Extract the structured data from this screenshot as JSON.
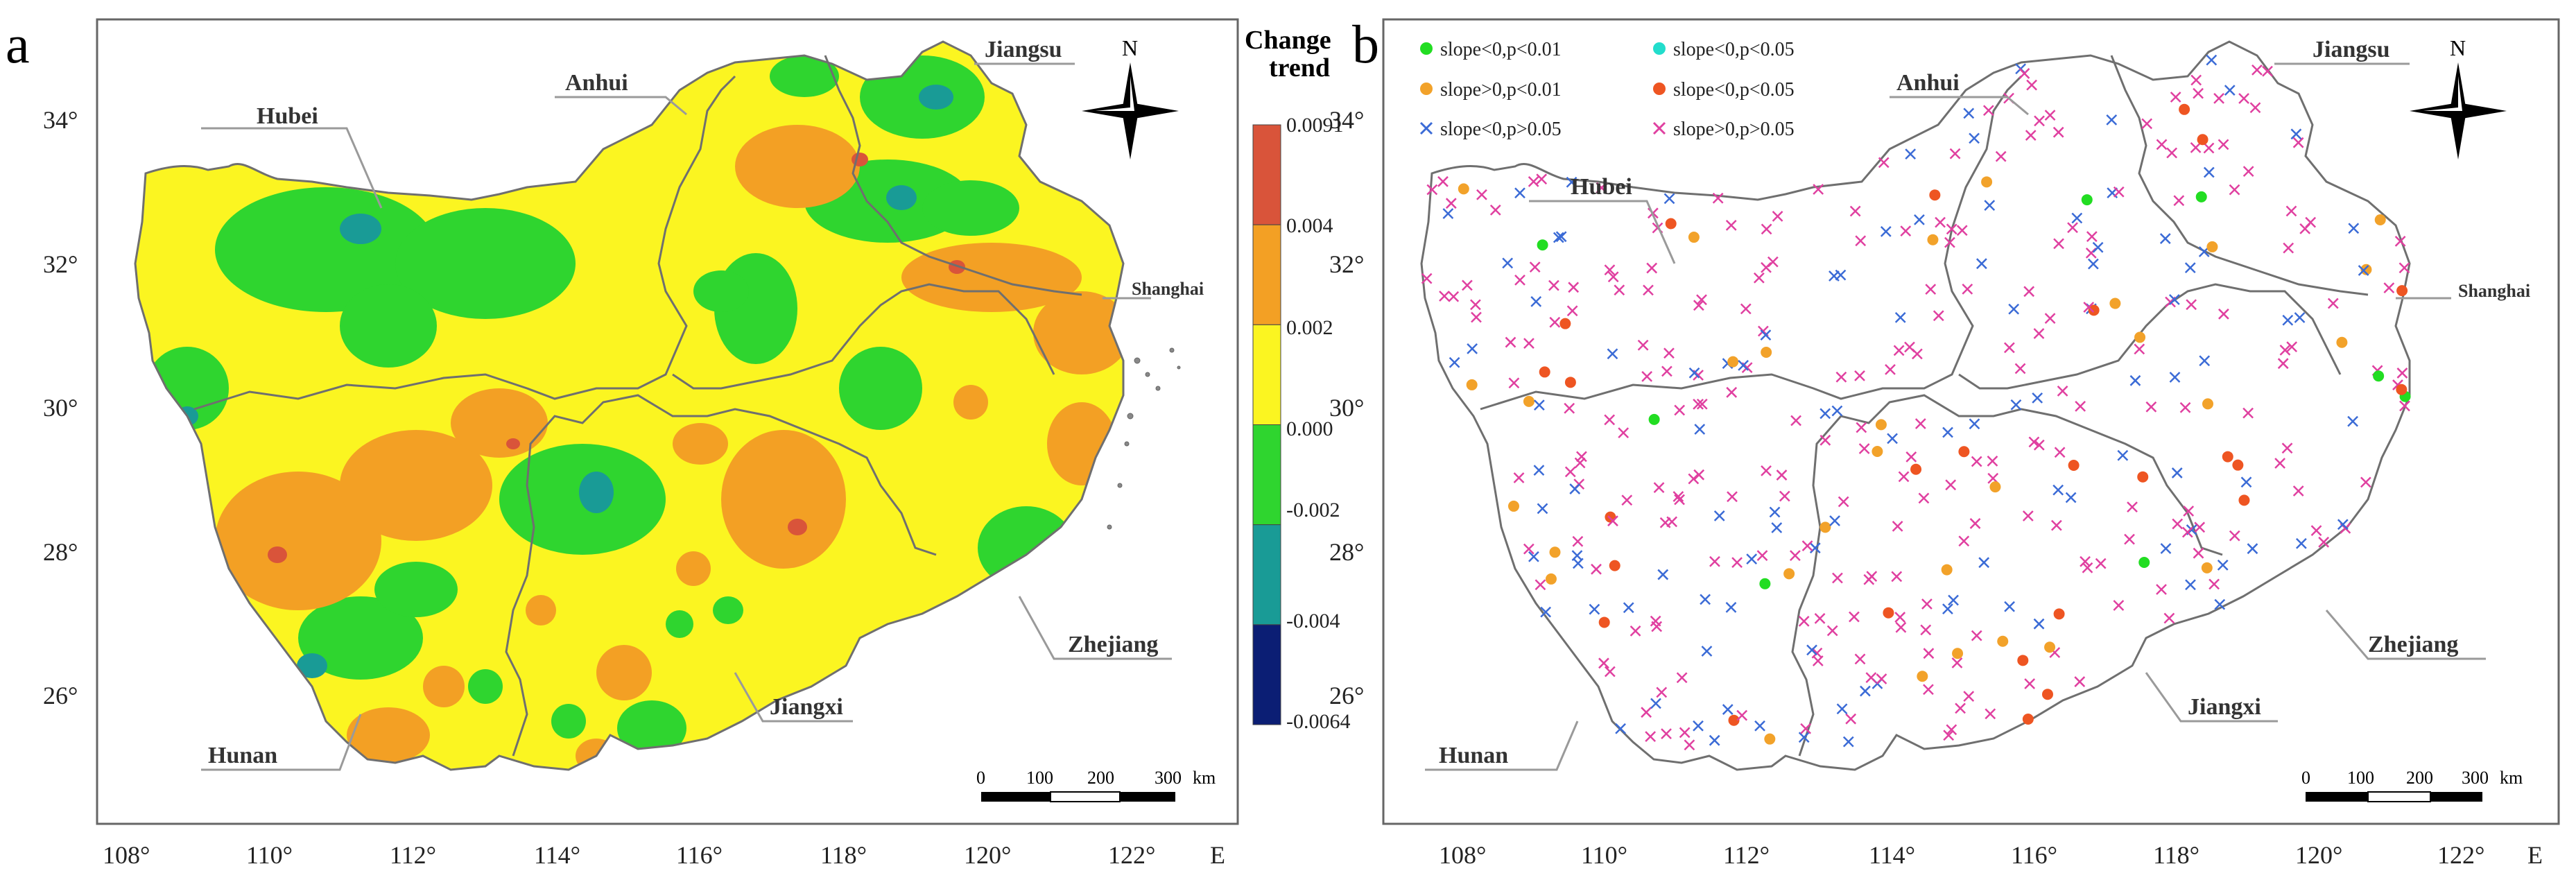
{
  "panel_a": {
    "label": "a",
    "legend_title_line1": "Change",
    "legend_title_line2": "trend",
    "legend_ticks": [
      "0.0091",
      "0.004",
      "0.002",
      "0.000",
      "-0.002",
      "-0.004",
      "-0.0064"
    ],
    "legend_colors": [
      "#d9543a",
      "#f3a024",
      "#fbf521",
      "#2fd52f",
      "#199b96",
      "#0b1e74"
    ]
  },
  "panel_b": {
    "label": "b",
    "legend_items": [
      {
        "symbol": "dot",
        "color": "#22dd22",
        "text": "slope<0,p<0.01"
      },
      {
        "symbol": "dot",
        "color": "#22ddcc",
        "text": "slope<0,p<0.05"
      },
      {
        "symbol": "dot",
        "color": "#f2a22a",
        "text": "slope>0,p<0.01"
      },
      {
        "symbol": "dot",
        "color": "#ee5522",
        "text": "slope<0,p<0.05"
      },
      {
        "symbol": "cross",
        "color": "#3b6bd6",
        "text": "slope<0,p>0.05"
      },
      {
        "symbol": "cross",
        "color": "#e040a0",
        "text": "slope>0,p>0.05"
      }
    ]
  },
  "provinces": {
    "hubei": "Hubei",
    "anhui": "Anhui",
    "jiangsu": "Jiangsu",
    "shanghai": "Shanghai",
    "zhejiang": "Zhejiang",
    "jiangxi": "Jiangxi",
    "hunan": "Hunan"
  },
  "axes": {
    "x_ticks": [
      "108°",
      "110°",
      "112°",
      "114°",
      "116°",
      "118°",
      "120°",
      "122°"
    ],
    "x_suffix": "E",
    "y_ticks": [
      "34°",
      "32°",
      "30°",
      "28°",
      "26°"
    ]
  },
  "north_label": "N",
  "scalebar": {
    "labels": [
      "0",
      "100",
      "200",
      "300"
    ],
    "unit": "km"
  },
  "colors": {
    "frame": "#666666",
    "border": "#6f6f6f",
    "leader": "#9a9a9a"
  }
}
